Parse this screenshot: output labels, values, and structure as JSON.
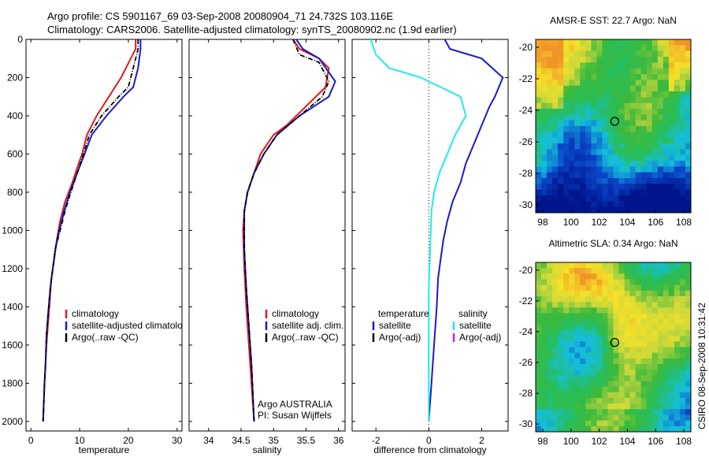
{
  "figure": {
    "title_line1": "Argo profile: CS 5901167_69 03-Sep-2008 20080904_71 24.732S 103.116E",
    "title_line2": "Climatology: CARS2006. Satellite-adjusted climatology: synTS_20080902.nc (1.9d earlier)",
    "side_label": "CSIRO 08-Sep-2008 10:31:42",
    "credit_line1": "Argo AUSTRALIA",
    "credit_line2": "PI: Susan Wijffels"
  },
  "colors": {
    "red": "#dd1c1c",
    "blue": "#1a1acc",
    "black": "#000000",
    "cyan": "#22eaea",
    "magenta": "#cc22cc"
  },
  "chart_data": [
    {
      "type": "line",
      "xlabel": "temperature",
      "xlim": [
        -1,
        31
      ],
      "ylim": [
        0,
        2050
      ],
      "xticks": [
        "0",
        "10",
        "20",
        "30"
      ],
      "yticks": [
        "0",
        "200",
        "400",
        "600",
        "800",
        "1000",
        "1200",
        "1400",
        "1600",
        "1800",
        "2000"
      ],
      "y_reversed": true,
      "legend": [
        "climatology",
        "satellite-adjusted climatology",
        "Argo(..raw -QC)"
      ],
      "series": [
        {
          "name": "climatology",
          "color": "red",
          "x": [
            21.5,
            21.5,
            20.5,
            18.5,
            16,
            13.5,
            11.5,
            10.5,
            9.8,
            8.5,
            7,
            6,
            5.3,
            4.8,
            4.2,
            3.8,
            3.5,
            3.2,
            3,
            2.8,
            2.5
          ],
          "y": [
            0,
            50,
            100,
            200,
            300,
            400,
            500,
            600,
            650,
            750,
            850,
            950,
            1050,
            1150,
            1250,
            1400,
            1500,
            1600,
            1700,
            1800,
            2000
          ]
        },
        {
          "name": "satellite-adjusted climatology",
          "color": "blue",
          "x": [
            22.5,
            22.5,
            22,
            21,
            19,
            15.5,
            12.5,
            11,
            9.5,
            8,
            6.8,
            5.8,
            5,
            4.5,
            4,
            3.5,
            3.2,
            3,
            2.8,
            2.5
          ],
          "y": [
            0,
            50,
            150,
            250,
            300,
            400,
            500,
            600,
            700,
            800,
            900,
            1000,
            1100,
            1200,
            1300,
            1450,
            1550,
            1700,
            1800,
            2000
          ]
        },
        {
          "name": "Argo(..raw -QC)",
          "color": "black",
          "dash": true,
          "x": [
            22,
            22,
            21,
            20,
            18,
            14.5,
            12,
            10.8,
            9.5,
            8.2,
            7,
            6,
            5,
            4.5,
            4,
            3.5,
            3.2,
            3,
            2.8,
            2.5
          ],
          "y": [
            0,
            50,
            150,
            250,
            300,
            400,
            500,
            600,
            700,
            800,
            900,
            1000,
            1100,
            1200,
            1300,
            1450,
            1550,
            1700,
            1800,
            2000
          ]
        }
      ]
    },
    {
      "type": "line",
      "xlabel": "salinity",
      "xlim": [
        33.7,
        36.1
      ],
      "ylim": [
        0,
        2050
      ],
      "xticks": [
        "34",
        "34.5",
        "35",
        "35.5",
        "36"
      ],
      "y_reversed": true,
      "legend": [
        "climatology",
        "satellite adj. clim.",
        "Argo(..raw -QC)"
      ],
      "series": [
        {
          "name": "climatology",
          "color": "red",
          "x": [
            35.3,
            35.4,
            35.7,
            35.85,
            35.8,
            35.5,
            35.2,
            35.0,
            34.8,
            34.7,
            34.6,
            34.55,
            34.53,
            34.55,
            34.58,
            34.62,
            34.66,
            34.7
          ],
          "y": [
            0,
            50,
            100,
            150,
            250,
            350,
            450,
            500,
            600,
            700,
            800,
            900,
            1000,
            1200,
            1400,
            1600,
            1800,
            2000
          ]
        },
        {
          "name": "satellite adj. clim.",
          "color": "blue",
          "x": [
            35.35,
            35.45,
            35.7,
            35.95,
            35.85,
            35.4,
            35.05,
            34.85,
            34.7,
            34.6,
            34.55,
            34.55,
            34.58,
            34.62,
            34.66,
            34.7
          ],
          "y": [
            0,
            50,
            100,
            220,
            300,
            400,
            500,
            600,
            700,
            800,
            900,
            1100,
            1300,
            1500,
            1700,
            2000
          ]
        },
        {
          "name": "Argo(..raw -QC)",
          "color": "black",
          "dash": true,
          "x": [
            35.3,
            35.4,
            35.7,
            35.85,
            35.75,
            35.4,
            35.05,
            34.85,
            34.7,
            34.6,
            34.55,
            34.55,
            34.58,
            34.62,
            34.66,
            34.7
          ],
          "y": [
            0,
            80,
            120,
            220,
            300,
            400,
            500,
            600,
            700,
            800,
            900,
            1100,
            1300,
            1500,
            1700,
            2000
          ]
        }
      ]
    },
    {
      "type": "line",
      "xlabel": "difference from climatology",
      "xlim": [
        -2.9,
        3
      ],
      "ylim": [
        0,
        2050
      ],
      "xticks": [
        "-2",
        "0",
        "2"
      ],
      "y_reversed": true,
      "legend_left_title": "temperature",
      "legend_right_title": "salinity",
      "legend": [
        "satellite",
        "Argo(-adj)",
        "satellite",
        "Argo(-adj)"
      ],
      "series": [
        {
          "name": "satellite",
          "color": "blue",
          "x": [
            0.6,
            0.8,
            2.0,
            2.8,
            2.5,
            2.3,
            2.0,
            1.7,
            1.4,
            1.2,
            0.9,
            0.7,
            0.55,
            0.45,
            0.35,
            0.3,
            0.25,
            0.2,
            0.1,
            0.0
          ],
          "y": [
            0,
            50,
            100,
            200,
            300,
            350,
            450,
            550,
            650,
            750,
            850,
            950,
            1050,
            1150,
            1250,
            1400,
            1500,
            1600,
            1800,
            2000
          ]
        },
        {
          "name": "satellite",
          "color": "cyan",
          "x": [
            -2.2,
            -2.0,
            -1.5,
            -0.3,
            1.2,
            1.4,
            1.0,
            0.7,
            0.4,
            0.2,
            0.1,
            0.05,
            0.0,
            0.0,
            0.0
          ],
          "y": [
            0,
            80,
            150,
            200,
            300,
            400,
            500,
            600,
            700,
            800,
            900,
            1100,
            1300,
            1600,
            2000
          ]
        }
      ]
    }
  ],
  "maps": [
    {
      "title": "AMSR-E SST: 22.7 Argo: NaN",
      "xticks": [
        "98",
        "100",
        "102",
        "104",
        "106",
        "108"
      ],
      "yticks": [
        "-20",
        "-22",
        "-24",
        "-26",
        "-28",
        "-30"
      ],
      "lon_range": [
        97.5,
        108.5
      ],
      "lat_range": [
        -30.5,
        -19.5
      ],
      "marker": {
        "lon": 103.1,
        "lat": -24.7
      }
    },
    {
      "title": "Altimetric SLA: 0.34 Argo: NaN",
      "xticks": [
        "98",
        "100",
        "102",
        "104",
        "106",
        "108"
      ],
      "yticks": [
        "-20",
        "-22",
        "-24",
        "-26",
        "-28",
        "-30"
      ],
      "lon_range": [
        97.5,
        108.5
      ],
      "lat_range": [
        -30.5,
        -19.5
      ],
      "marker": {
        "lon": 103.1,
        "lat": -24.7
      }
    }
  ]
}
